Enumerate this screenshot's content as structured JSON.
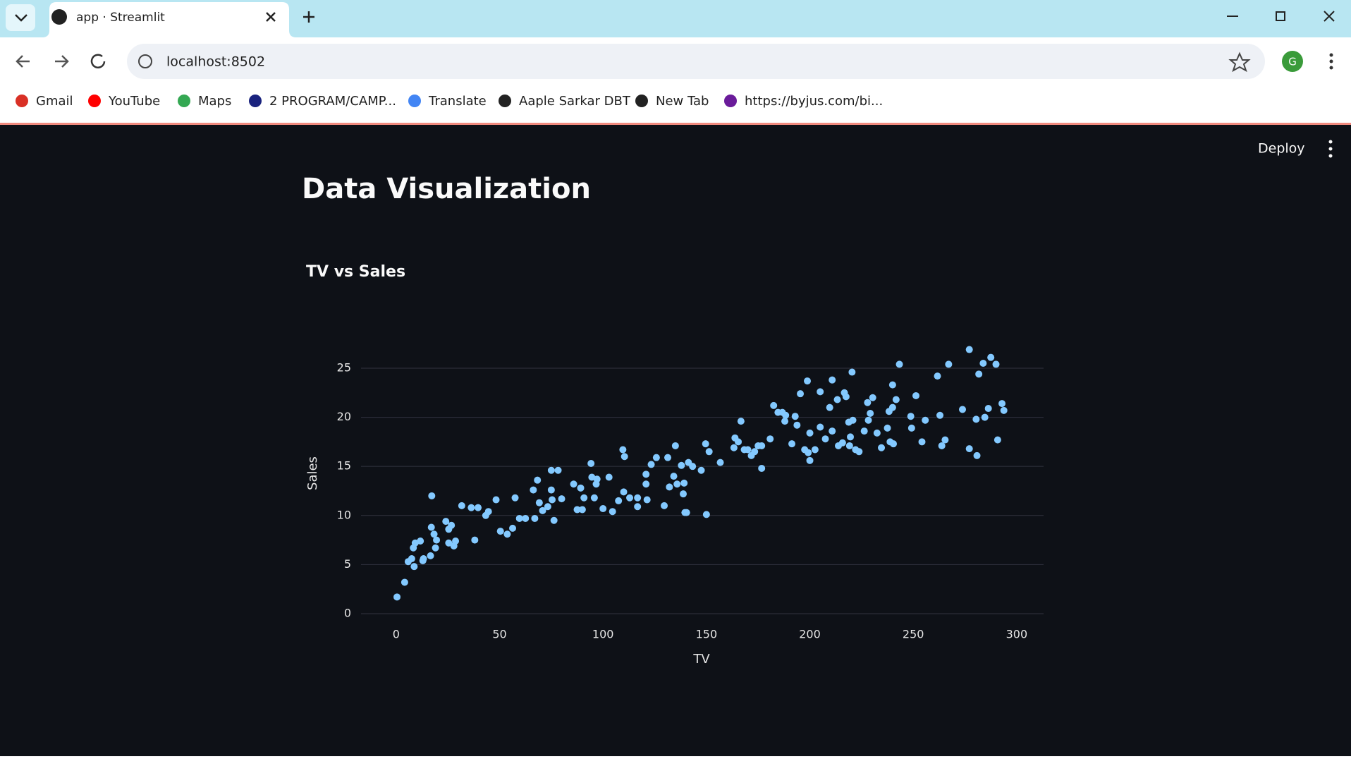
{
  "browser": {
    "tab_title": "app · Streamlit",
    "url": "localhost:8502",
    "profile_initial": "G",
    "bookmarks": [
      "Gmail",
      "YouTube",
      "Maps",
      "2 PROGRAM/CAMP...",
      "Translate",
      "Aaple Sarkar DBT",
      "New Tab",
      "https://byjus.com/bi..."
    ]
  },
  "page": {
    "deploy": "Deploy",
    "title": "Data Visualization"
  },
  "chart_data": {
    "type": "scatter",
    "title": "TV vs Sales",
    "x_label": "TV",
    "y_label": "Sales",
    "color": "#83c9ff",
    "grid": true,
    "xlim": [
      -17,
      313
    ],
    "ylim": [
      0,
      27.8
    ],
    "xticks": [
      0,
      50,
      100,
      150,
      200,
      250,
      300
    ],
    "yticks": [
      0,
      5,
      10,
      15,
      20,
      25
    ],
    "x": [
      0.4,
      4.1,
      5.8,
      7.5,
      8.3,
      8.7,
      9.2,
      11.7,
      12.9,
      13.2,
      16.6,
      17,
      17.2,
      18.3,
      19,
      19.5,
      24,
      25.4,
      25.4,
      26.7,
      27.9,
      28.7,
      31.7,
      36.3,
      38,
      39.6,
      43.3,
      44.6,
      48.3,
      50.4,
      53.7,
      56.3,
      57.5,
      59.6,
      62.5,
      66.3,
      67,
      68.3,
      69.2,
      70.8,
      73.3,
      75,
      75,
      75.4,
      76.3,
      78.3,
      80,
      85.8,
      87.5,
      89.2,
      90,
      90.8,
      94.2,
      94.6,
      95.8,
      96.7,
      97.1,
      100,
      102.9,
      104.6,
      107.5,
      109.6,
      110.4,
      110,
      112.9,
      116.7,
      116.7,
      120.8,
      120.8,
      121.3,
      123.3,
      125.8,
      129.6,
      131.3,
      132.1,
      134.2,
      135,
      135.8,
      137.9,
      138.8,
      139.2,
      139.6,
      140.4,
      141.3,
      143.3,
      147.5,
      149.6,
      150,
      151.3,
      156.7,
      163.3,
      163.8,
      165.4,
      166.7,
      168.3,
      170,
      171.7,
      173.3,
      175,
      176.7,
      176.7,
      180.8,
      182.5,
      184.6,
      186.7,
      187.9,
      188.3,
      191.3,
      192.9,
      193.8,
      195.4,
      197.5,
      198.8,
      199.2,
      200,
      200,
      202.5,
      205,
      205,
      207.5,
      209.6,
      210.8,
      210.8,
      213.3,
      213.8,
      215.8,
      216.7,
      217.5,
      218.8,
      219.2,
      219.6,
      220.4,
      220.8,
      222.1,
      223.8,
      226.3,
      227.9,
      228.3,
      229.2,
      230.4,
      232.5,
      234.6,
      237.5,
      238.3,
      238.8,
      240,
      240,
      240.4,
      241.7,
      243.3,
      248.8,
      249.2,
      251.3,
      254.2,
      255.8,
      261.7,
      262.9,
      263.8,
      265.4,
      267.1,
      273.8,
      277.1,
      277.1,
      280.4,
      280.8,
      281.7,
      283.8,
      284.6,
      286.3,
      287.5,
      290,
      290.8,
      292.9,
      293.8
    ],
    "y": [
      1.7,
      3.2,
      5.3,
      5.6,
      6.7,
      4.8,
      7.2,
      7.4,
      5.4,
      5.6,
      5.9,
      8.8,
      12,
      8.1,
      6.7,
      7.5,
      9.4,
      8.6,
      7.2,
      9,
      6.9,
      7.4,
      11,
      10.8,
      7.5,
      10.8,
      10,
      10.4,
      11.6,
      8.4,
      8.1,
      8.7,
      11.8,
      9.7,
      9.7,
      12.6,
      9.7,
      13.6,
      11.3,
      10.5,
      10.9,
      14.6,
      12.6,
      11.6,
      9.5,
      14.6,
      11.7,
      13.2,
      10.6,
      12.8,
      10.6,
      11.8,
      15.3,
      13.9,
      11.8,
      13.2,
      13.7,
      10.7,
      13.9,
      10.4,
      11.5,
      16.7,
      16,
      12.4,
      11.8,
      11.8,
      10.9,
      14.2,
      13.2,
      11.6,
      15.2,
      15.9,
      11,
      15.9,
      12.9,
      14,
      17.1,
      13.2,
      15.1,
      12.2,
      13.3,
      10.3,
      10.3,
      15.4,
      15,
      14.6,
      17.3,
      10.1,
      16.5,
      15.4,
      16.9,
      17.9,
      17.5,
      19.6,
      16.7,
      16.7,
      16.1,
      16.5,
      17.1,
      14.8,
      17.1,
      17.8,
      21.2,
      20.5,
      20.5,
      19.6,
      20.2,
      17.3,
      20.1,
      19.2,
      22.4,
      16.7,
      23.7,
      16.4,
      15.6,
      18.4,
      16.7,
      22.6,
      19,
      17.8,
      21,
      23.8,
      18.6,
      21.8,
      17.1,
      17.4,
      22.5,
      22.1,
      19.5,
      17.1,
      18,
      24.6,
      19.7,
      16.7,
      16.5,
      18.6,
      21.5,
      19.7,
      20.4,
      22,
      18.4,
      16.9,
      18.9,
      20.6,
      17.5,
      21,
      23.3,
      17.3,
      21.8,
      25.4,
      20.1,
      18.9,
      22.2,
      17.5,
      19.7,
      24.2,
      20.2,
      17.1,
      17.7,
      25.4,
      20.8,
      26.9,
      16.8,
      19.8,
      16.1,
      24.4,
      25.5,
      20,
      20.9,
      26.1,
      25.4,
      17.7,
      21.4,
      20.7
    ]
  }
}
